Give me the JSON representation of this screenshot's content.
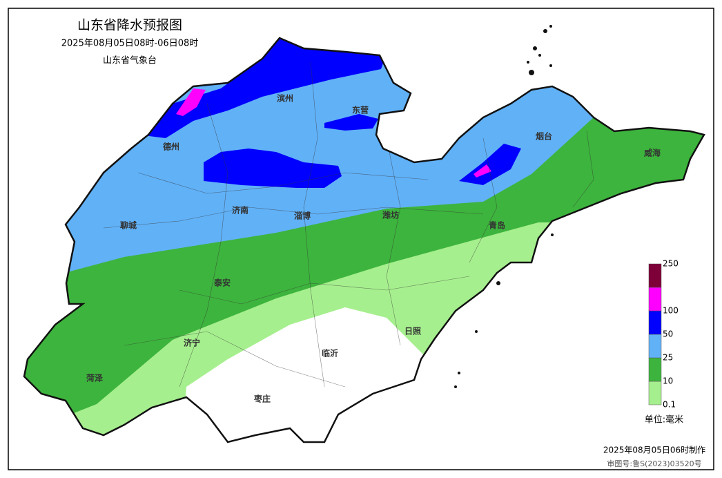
{
  "header": {
    "title": "山东省降水预报图",
    "period": "2025年08月05日08时-06日08时",
    "agency": "山东省气象台"
  },
  "legend": {
    "levels": [
      {
        "value": 0.1,
        "color": "#a6ef8e"
      },
      {
        "value": 10,
        "color": "#3db43d"
      },
      {
        "value": 25,
        "color": "#61b1f7"
      },
      {
        "value": 50,
        "color": "#0000fe"
      },
      {
        "value": 100,
        "color": "#ff00ff"
      },
      {
        "value": 250,
        "color": "#7e0038"
      }
    ],
    "unit": "单位:毫米"
  },
  "cities": [
    "滨州",
    "东营",
    "德州",
    "烟台",
    "威海",
    "济南",
    "聊城",
    "淄博",
    "潍坊",
    "青岛",
    "泰安",
    "济宁",
    "日照",
    "临沂",
    "菏泽",
    "枣庄"
  ],
  "footer": {
    "made": "2025年08月05日06时制作",
    "approval": "审图号:鲁S(2023)03520号"
  }
}
